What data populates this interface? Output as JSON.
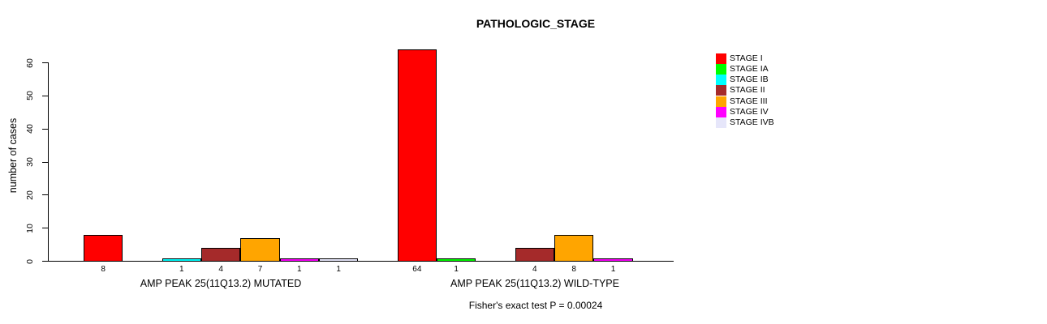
{
  "chart_data": {
    "type": "bar",
    "title": "PATHOLOGIC_STAGE",
    "ylabel": "number of cases",
    "ylim": [
      0,
      60
    ],
    "yticks": [
      0,
      10,
      20,
      30,
      40,
      50,
      60
    ],
    "grid": false,
    "legend_position": "right",
    "background": "#FFFFFF",
    "axis_color": "#000000",
    "text_color": "#000000",
    "groups": [
      "AMP PEAK 25(11Q13.2) MUTATED",
      "AMP PEAK 25(11Q13.2) WILD-TYPE"
    ],
    "categories": [
      "STAGE I",
      "STAGE IA",
      "STAGE IB",
      "STAGE II",
      "STAGE III",
      "STAGE IV",
      "STAGE IVB"
    ],
    "series": [
      {
        "name": "STAGE I",
        "color": "#FF0000",
        "values": [
          8,
          64
        ]
      },
      {
        "name": "STAGE IA",
        "color": "#00FF00",
        "values": [
          0,
          1
        ]
      },
      {
        "name": "STAGE IB",
        "color": "#00FFFF",
        "values": [
          1,
          0
        ]
      },
      {
        "name": "STAGE II",
        "color": "#A52A2A",
        "values": [
          4,
          4
        ]
      },
      {
        "name": "STAGE III",
        "color": "#FFA500",
        "values": [
          7,
          8
        ]
      },
      {
        "name": "STAGE IV",
        "color": "#FF00FF",
        "values": [
          1,
          1
        ]
      },
      {
        "name": "STAGE IVB",
        "color": "#E6E6FA",
        "values": [
          1,
          0
        ]
      }
    ],
    "bar_value_labels": {
      "AMP PEAK 25(11Q13.2) MUTATED": [
        "8",
        "",
        "1",
        "4",
        "7",
        "1",
        "1"
      ],
      "AMP PEAK 25(11Q13.2) WILD-TYPE": [
        "64",
        "1",
        "",
        "4",
        "8",
        "1",
        ""
      ]
    },
    "annotation": "Fisher's exact test P = 0.00024"
  }
}
